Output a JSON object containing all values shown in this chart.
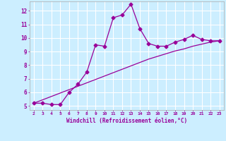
{
  "xlabel": "Windchill (Refroidissement éolien,°C)",
  "x_data": [
    2,
    3,
    4,
    5,
    6,
    7,
    8,
    9,
    10,
    11,
    12,
    13,
    14,
    15,
    16,
    17,
    18,
    19,
    20,
    21,
    22,
    23
  ],
  "y_curve": [
    5.2,
    5.2,
    5.1,
    5.1,
    6.0,
    6.6,
    7.5,
    9.5,
    9.4,
    11.5,
    11.7,
    12.5,
    10.7,
    9.6,
    9.4,
    9.4,
    9.7,
    9.9,
    10.2,
    9.9,
    9.8,
    9.8
  ],
  "y_line": [
    5.2,
    5.45,
    5.7,
    5.95,
    6.2,
    6.45,
    6.7,
    6.95,
    7.2,
    7.45,
    7.7,
    7.95,
    8.2,
    8.45,
    8.65,
    8.85,
    9.05,
    9.2,
    9.4,
    9.55,
    9.7,
    9.8
  ],
  "line_color": "#990099",
  "bg_color": "#cceeff",
  "grid_color": "#ffffff",
  "text_color": "#990099",
  "ylim": [
    4.7,
    12.7
  ],
  "xlim": [
    1.5,
    23.5
  ],
  "yticks": [
    5,
    6,
    7,
    8,
    9,
    10,
    11,
    12
  ],
  "xticks": [
    2,
    3,
    4,
    5,
    6,
    7,
    8,
    9,
    10,
    11,
    12,
    13,
    14,
    15,
    16,
    17,
    18,
    19,
    20,
    21,
    22,
    23
  ]
}
